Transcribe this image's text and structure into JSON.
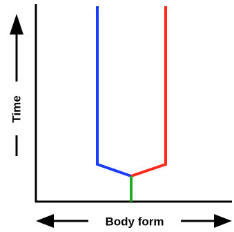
{
  "labels": {
    "y_axis": "Time",
    "x_axis": "Body form"
  },
  "colors": {
    "axis": "#000000",
    "ancestor_lineage": "#22aa22",
    "left_lineage": "#1a3cff",
    "right_lineage": "#ff2a1a",
    "background": "#ffffff"
  }
}
